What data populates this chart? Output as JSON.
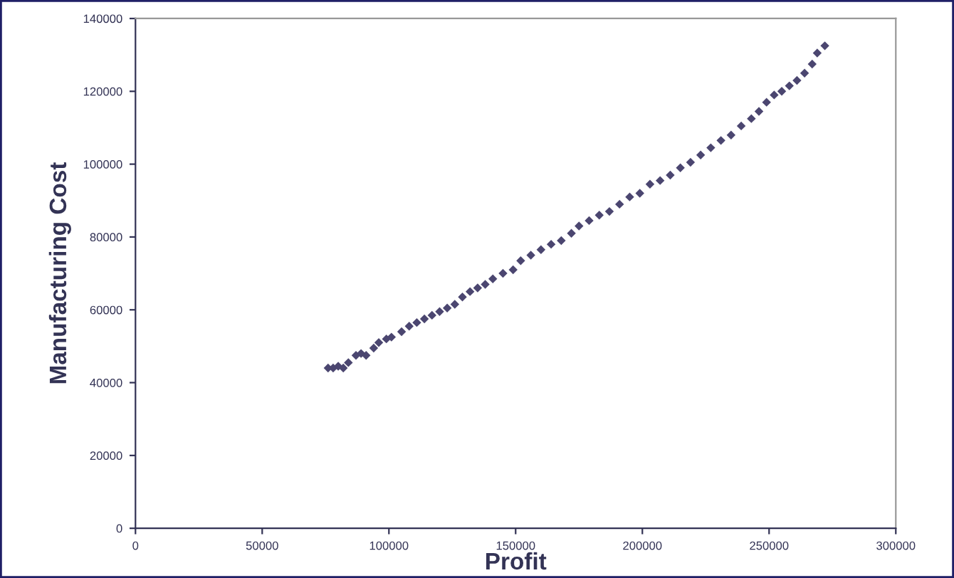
{
  "chart_data": {
    "type": "scatter",
    "xlabel": "Profit",
    "ylabel": "Manufacturing Cost",
    "marker": "diamond",
    "grid": false,
    "legend": false,
    "x": [
      76000,
      78000,
      80000,
      82000,
      84000,
      87000,
      89000,
      91000,
      94000,
      96000,
      99000,
      101000,
      105000,
      108000,
      111000,
      114000,
      117000,
      120000,
      123000,
      126000,
      129000,
      132000,
      135000,
      138000,
      141000,
      145000,
      149000,
      152000,
      156000,
      160000,
      164000,
      168000,
      172000,
      175000,
      179000,
      183000,
      187000,
      191000,
      195000,
      199000,
      203000,
      207000,
      211000,
      215000,
      219000,
      223000,
      227000,
      231000,
      235000,
      239000,
      243000,
      246000,
      249000,
      252000,
      255000,
      258000,
      261000,
      264000,
      267000,
      269000,
      272000
    ],
    "values": [
      44000,
      44000,
      44500,
      44000,
      45500,
      47500,
      48000,
      47500,
      49500,
      51000,
      52000,
      52500,
      54000,
      55500,
      56500,
      57500,
      58500,
      59500,
      60500,
      61500,
      63500,
      65000,
      66000,
      67000,
      68500,
      70000,
      71000,
      73500,
      75000,
      76500,
      78000,
      79000,
      81000,
      83000,
      84500,
      86000,
      87000,
      89000,
      91000,
      92000,
      94500,
      95500,
      97000,
      99000,
      100500,
      102500,
      104500,
      106500,
      108000,
      110500,
      112500,
      114500,
      117000,
      119000,
      120000,
      121500,
      123000,
      125000,
      127500,
      130500,
      132500
    ],
    "color": "#4b4670",
    "xlim": [
      0,
      300000
    ],
    "xticks": [
      0,
      50000,
      100000,
      150000,
      200000,
      250000,
      300000
    ],
    "ylim": [
      0,
      140000
    ],
    "yticks": [
      0,
      20000,
      40000,
      60000,
      80000,
      100000,
      120000,
      140000
    ]
  }
}
